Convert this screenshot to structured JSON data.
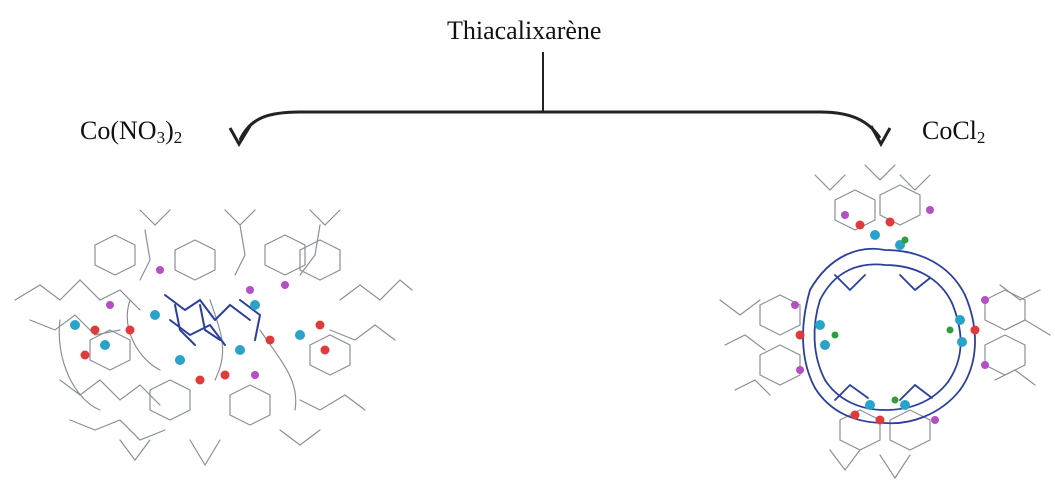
{
  "diagram": {
    "reagent_label": "Thiacalixarène",
    "left_branch": {
      "label_base": "Co(NO",
      "label_sub1": "3",
      "label_close": ")",
      "label_sub2": "2"
    },
    "right_branch": {
      "label_base": "CoCl",
      "label_sub": "2"
    }
  },
  "colors": {
    "line": "#222222",
    "bond_grey": "#8a9099",
    "bond_blue": "#2c3f9e",
    "cobalt": "#2aa3c9",
    "oxygen": "#e03a3a",
    "sulfur": "#b44fc4",
    "chlorine": "#2e9e3a"
  }
}
